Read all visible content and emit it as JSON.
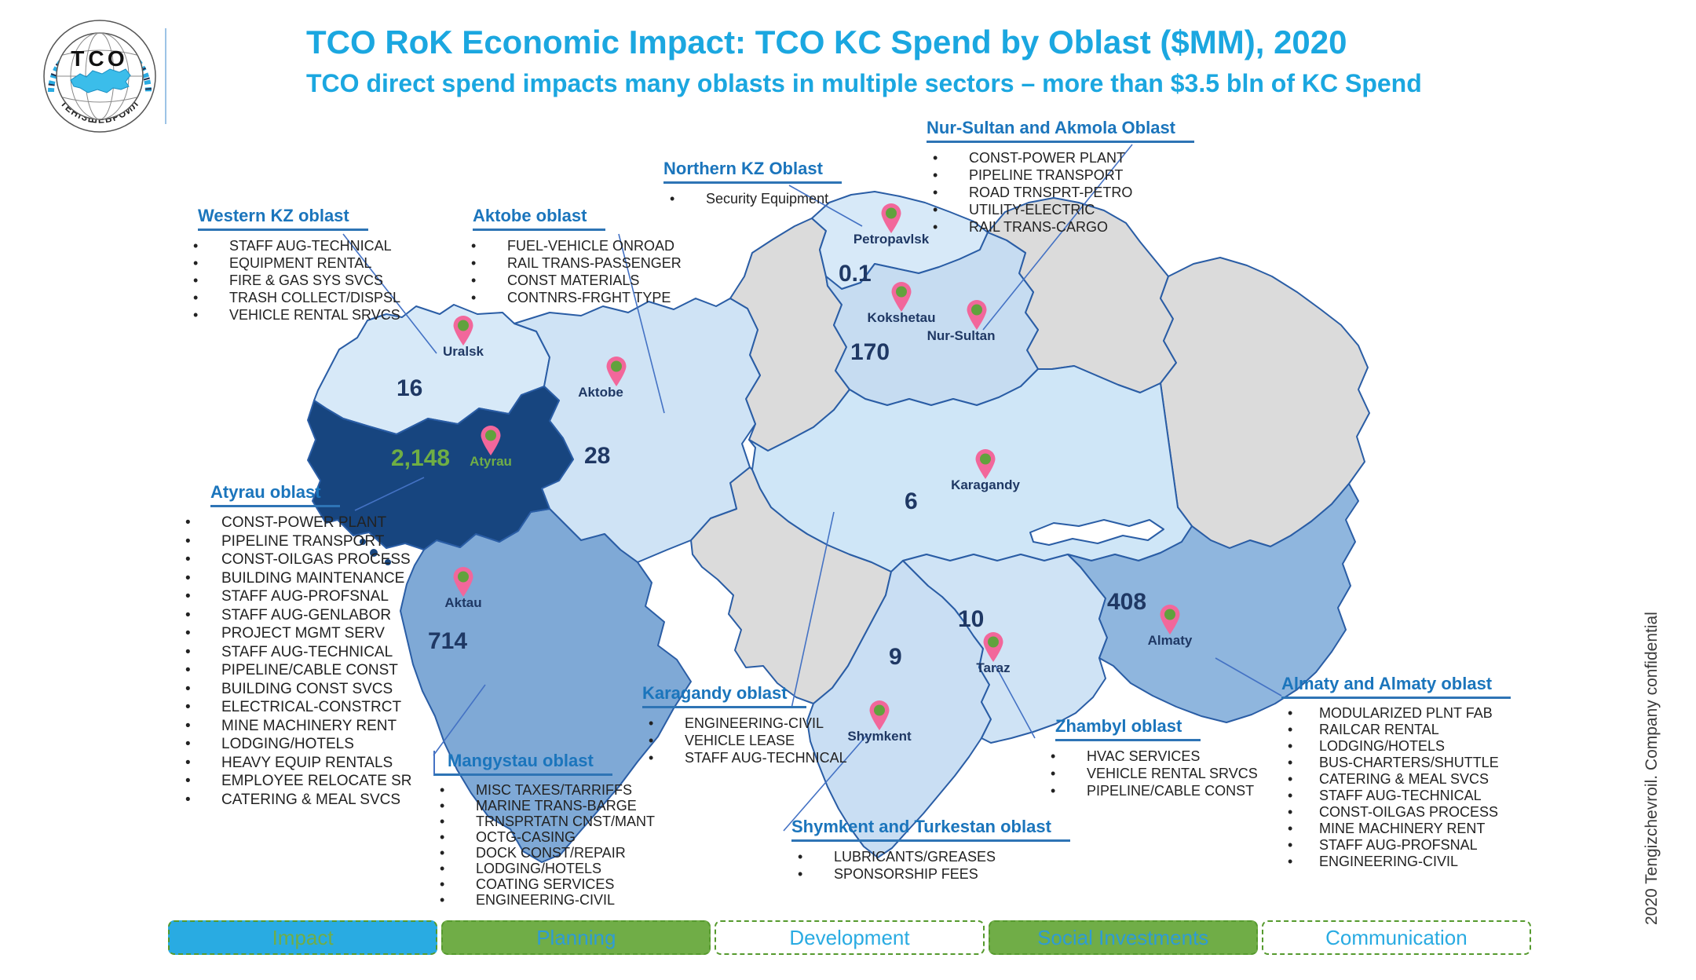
{
  "slide": {
    "title": "TCO RoK Economic Impact: TCO KC Spend by Oblast ($MM), 2020",
    "subtitle": "TCO direct spend impacts many oblasts in multiple sectors – more than $3.5 bln of KC Spend",
    "confidential_note": "2020 Tengizchevroil. Company confidential",
    "logo": {
      "acronym": "ТСО",
      "ring_text": "ТЕНІЗШЕВРОЙЛ"
    }
  },
  "callouts": {
    "western": {
      "title": "Western KZ oblast",
      "items": [
        "STAFF AUG-TECHNICAL",
        "EQUIPMENT RENTAL",
        "FIRE & GAS SYS SVCS",
        "TRASH COLLECT/DISPSL",
        "VEHICLE RENTAL SRVCS"
      ]
    },
    "aktobe": {
      "title": "Aktobe oblast",
      "items": [
        "FUEL-VEHICLE ONROAD",
        "RAIL TRANS-PASSENGER",
        "CONST MATERIALS",
        "CONTNRS-FRGHT TYPE"
      ]
    },
    "northern": {
      "title": "Northern KZ Oblast",
      "items": [
        "Security Equipment"
      ]
    },
    "nursultan": {
      "title": "Nur-Sultan and Akmola Oblast",
      "items": [
        "CONST-POWER PLANT",
        "PIPELINE TRANSPORT",
        "ROAD TRNSPRT-PETRO",
        "UTILITY-ELECTRIC",
        "RAIL TRANS-CARGO"
      ]
    },
    "atyrau": {
      "title": "Atyrau oblast",
      "items": [
        "CONST-POWER PLANT",
        "PIPELINE TRANSPORT",
        "CONST-OILGAS PROCESS",
        "BUILDING MAINTENANCE",
        "STAFF AUG-PROFSNAL",
        "STAFF AUG-GENLABOR",
        "PROJECT MGMT SERV",
        "STAFF AUG-TECHNICAL",
        "PIPELINE/CABLE CONST",
        "BUILDING CONST SVCS",
        "ELECTRICAL-CONSTRCT",
        "MINE MACHINERY RENT",
        "LODGING/HOTELS",
        "HEAVY EQUIP RENTALS",
        "EMPLOYEE RELOCATE SR",
        "CATERING & MEAL SVCS"
      ]
    },
    "mangystau": {
      "title": "Mangystau oblast",
      "items": [
        "MISC TAXES/TARRIFFS",
        "MARINE TRANS-BARGE",
        "TRNSPRTATN CNST/MANT",
        "OCTG-CASING",
        "DOCK CONST/REPAIR",
        "LODGING/HOTELS",
        "COATING SERVICES",
        "ENGINEERING-CIVIL"
      ]
    },
    "karagandy": {
      "title": "Karagandy oblast",
      "items": [
        "ENGINEERING-CIVIL",
        "VEHICLE LEASE",
        "STAFF AUG-TECHNICAL"
      ]
    },
    "shymkent": {
      "title": "Shymkent and Turkestan oblast",
      "items": [
        "LUBRICANTS/GREASES",
        "SPONSORSHIP FEES"
      ]
    },
    "zhambyl": {
      "title": "Zhambyl oblast",
      "items": [
        "HVAC SERVICES",
        "VEHICLE RENTAL SRVCS",
        "PIPELINE/CABLE CONST"
      ]
    },
    "almaty": {
      "title": "Almaty and Almaty oblast",
      "items": [
        "MODULARIZED PLNT FAB",
        "RAILCAR RENTAL",
        "LODGING/HOTELS",
        "BUS-CHARTERS/SHUTTLE",
        "CATERING & MEAL SVCS",
        "STAFF AUG-TECHNICAL",
        "CONST-OILGAS PROCESS",
        "MINE MACHINERY RENT",
        "STAFF AUG-PROFSNAL",
        "ENGINEERING-CIVIL"
      ]
    }
  },
  "map": {
    "cities": [
      {
        "name": "Petropavlsk",
        "value": "0.1"
      },
      {
        "name": "Kokshetau",
        "value": "170"
      },
      {
        "name": "Nur-Sultan",
        "value": ""
      },
      {
        "name": "Uralsk",
        "value": "16"
      },
      {
        "name": "Aktobe",
        "value": "28"
      },
      {
        "name": "Atyrau",
        "value": "2,148"
      },
      {
        "name": "Aktau",
        "value": "714"
      },
      {
        "name": "Karagandy",
        "value": "6"
      },
      {
        "name": "Taraz",
        "value": "10"
      },
      {
        "name": "Shymkent",
        "value": "9"
      },
      {
        "name": "Almaty",
        "value": "408"
      }
    ]
  },
  "nav_tabs": [
    {
      "label": "Impact"
    },
    {
      "label": "Planning"
    },
    {
      "label": "Development"
    },
    {
      "label": "Social Investments"
    },
    {
      "label": "Communication"
    }
  ],
  "colors": {
    "title_blue": "#1ba7e0",
    "heading_blue": "#1b75bc",
    "map_label_navy": "#1f3864",
    "highlight_green": "#70ad47",
    "atyrau_navy": "#17457f",
    "mangystau_blue": "#7fa9d6",
    "almaty_blue": "#8fb6de",
    "light_blue": "#cfe3f5",
    "gray_region": "#dbdbdb",
    "pin_pink": "#f2679b",
    "pin_green": "#61a23d",
    "tab_blue": "#29abe2",
    "tab_green": "#70ad47"
  },
  "chart_data": {
    "type": "table",
    "title": "TCO KC Spend by Oblast ($MM), 2020",
    "columns": [
      "Oblast",
      "KC Spend ($MM)"
    ],
    "rows": [
      [
        "Western KZ",
        16
      ],
      [
        "Atyrau",
        2148
      ],
      [
        "Aktobe",
        28
      ],
      [
        "Mangystau",
        714
      ],
      [
        "Northern KZ",
        0.1
      ],
      [
        "Nur-Sultan and Akmola",
        170
      ],
      [
        "Karagandy",
        6
      ],
      [
        "Zhambyl",
        10
      ],
      [
        "Shymkent and Turkestan",
        9
      ],
      [
        "Almaty and Almaty oblast",
        408
      ]
    ]
  }
}
